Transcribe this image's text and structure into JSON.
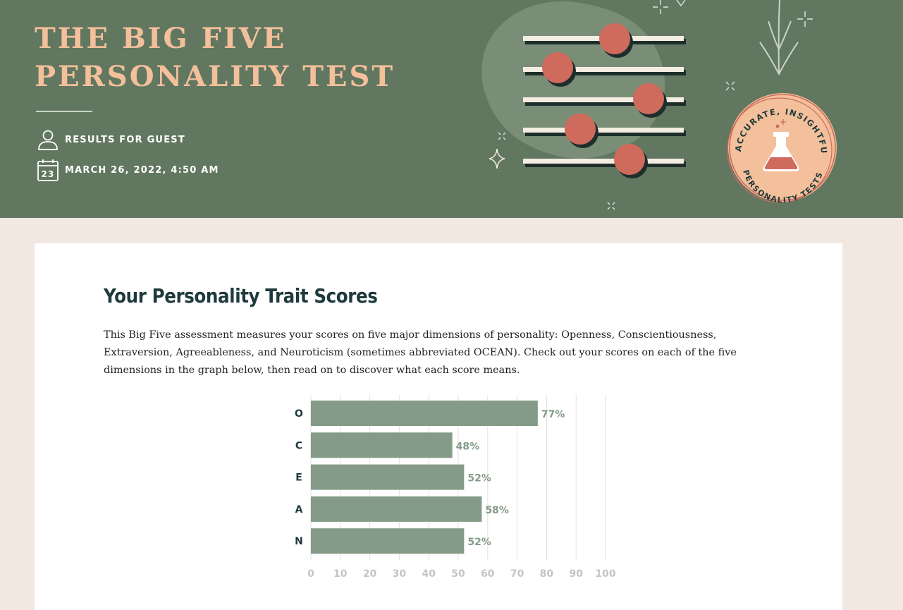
{
  "header": {
    "title_line1": "THE BIG FIVE",
    "title_line2": "PERSONALITY TEST",
    "results_for": "RESULTS FOR GUEST",
    "calendar_day": "23",
    "date": "MARCH 26, 2022, 4:50 AM",
    "badge_top_text": "ACCURATE, INSIGHTFUL",
    "badge_bottom_text": "PERSONALITY TESTS"
  },
  "colors": {
    "header_bg": "#627760",
    "title": "#f3c09b",
    "page_bg": "#f3e7e2",
    "bar": "#849b88",
    "knob": "#cf6b5c",
    "heading": "#1f3a3d"
  },
  "section": {
    "title": "Your Personality Trait Scores",
    "intro": "This Big Five assessment measures your scores on five major dimensions of personality: Openness, Conscientiousness, Extraversion, Agreeableness, and Neuroticism (sometimes abbreviated OCEAN). Check out your scores on each of the five dimensions in the graph below, then read on to discover what each score means."
  },
  "chart_data": {
    "type": "bar",
    "orientation": "horizontal",
    "categories": [
      "O",
      "C",
      "E",
      "A",
      "N"
    ],
    "values": [
      77,
      48,
      52,
      58,
      52
    ],
    "value_labels": [
      "77%",
      "48%",
      "52%",
      "58%",
      "52%"
    ],
    "xlim": [
      0,
      100
    ],
    "xticks": [
      "0",
      "10",
      "20",
      "30",
      "40",
      "50",
      "60",
      "70",
      "80",
      "90",
      "100"
    ],
    "grid": true,
    "title": "",
    "xlabel": "",
    "ylabel": ""
  }
}
